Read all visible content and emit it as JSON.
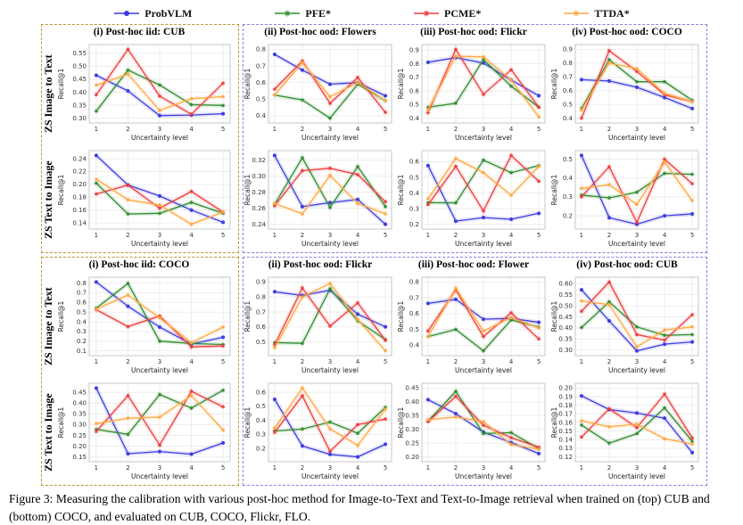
{
  "caption": "Figure 3: Measuring the calibration with various post-hoc method for Image-to-Text and Text-to-Image retrieval when trained on (top) CUB and (bottom) COCO, and evaluated on CUB, COCO, Flickr, FLO.",
  "legend": {
    "items": [
      {
        "label": "ProbVLM",
        "color": "#3d3de0",
        "marker": "circle"
      },
      {
        "label": "PFE*",
        "color": "#2f8b2f",
        "marker": "star"
      },
      {
        "label": "PCME*",
        "color": "#ef3b3b",
        "marker": "star"
      },
      {
        "label": "TTDA*",
        "color": "#ffa842",
        "marker": "star"
      }
    ]
  },
  "chart_data": {
    "type": "line",
    "x_values": [
      1,
      2,
      3,
      4,
      5
    ],
    "xlabel": "Uncertainty level",
    "ylabel": "Recall@1",
    "grid": true,
    "series_order": [
      "ProbVLM",
      "PFE*",
      "PCME*",
      "TTDA*"
    ],
    "series_colors": {
      "ProbVLM": "#3d3de0",
      "PFE*": "#2f8b2f",
      "PCME*": "#ef3b3b",
      "TTDA*": "#ffa842"
    },
    "sections": [
      {
        "position": "top",
        "trained_on": "CUB",
        "row_labels": [
          "ZS Image to Text",
          "ZS Text to Image"
        ],
        "columns": [
          {
            "title": "(i) Post-hoc iid: CUB",
            "charts": [
              {
                "row": "ZS Image to Text",
                "yticks": [
                  0.3,
                  0.35,
                  0.4,
                  0.45,
                  0.5,
                  0.55
                ],
                "ydec": 2,
                "series": {
                  "ProbVLM": [
                    0.465,
                    0.405,
                    0.31,
                    0.312,
                    0.317
                  ],
                  "PFE*": [
                    0.327,
                    0.485,
                    0.428,
                    0.352,
                    0.349
                  ],
                  "PCME*": [
                    0.39,
                    0.565,
                    0.385,
                    0.315,
                    0.435
                  ],
                  "TTDA*": [
                    0.427,
                    0.47,
                    0.33,
                    0.375,
                    0.383
                  ]
                }
              },
              {
                "row": "ZS Text to Image",
                "yticks": [
                  0.14,
                  0.16,
                  0.18,
                  0.2,
                  0.22,
                  0.24
                ],
                "ydec": 2,
                "series": {
                  "ProbVLM": [
                    0.245,
                    0.199,
                    0.182,
                    0.16,
                    0.141
                  ],
                  "PFE*": [
                    0.202,
                    0.154,
                    0.155,
                    0.172,
                    0.155
                  ],
                  "PCME*": [
                    0.185,
                    0.199,
                    0.163,
                    0.189,
                    0.157
                  ],
                  "TTDA*": [
                    0.208,
                    0.176,
                    0.168,
                    0.138,
                    0.157
                  ]
                }
              }
            ]
          },
          {
            "title": "(ii) Post-hoc ood: Flowers",
            "charts": [
              {
                "row": "ZS Image to Text",
                "yticks": [
                  0.4,
                  0.5,
                  0.6,
                  0.7,
                  0.8
                ],
                "ydec": 1,
                "series": {
                  "ProbVLM": [
                    0.77,
                    0.675,
                    0.59,
                    0.6,
                    0.52
                  ],
                  "PFE*": [
                    0.525,
                    0.495,
                    0.385,
                    0.59,
                    0.49
                  ],
                  "PCME*": [
                    0.56,
                    0.73,
                    0.475,
                    0.63,
                    0.42
                  ],
                  "TTDA*": [
                    0.525,
                    0.72,
                    0.515,
                    0.6,
                    0.49
                  ]
                }
              },
              {
                "row": "ZS Text to Image",
                "yticks": [
                  0.24,
                  0.26,
                  0.28,
                  0.3,
                  0.32
                ],
                "ydec": 2,
                "series": {
                  "ProbVLM": [
                    0.326,
                    0.262,
                    0.267,
                    0.271,
                    0.24
                  ],
                  "PFE*": [
                    0.265,
                    0.323,
                    0.261,
                    0.312,
                    0.262
                  ],
                  "PCME*": [
                    0.263,
                    0.307,
                    0.31,
                    0.302,
                    0.268
                  ],
                  "TTDA*": [
                    0.266,
                    0.253,
                    0.301,
                    0.266,
                    0.253
                  ]
                }
              }
            ]
          },
          {
            "title": "(iii) Post-hoc ood: Flickr",
            "charts": [
              {
                "row": "ZS Image to Text",
                "yticks": [
                  0.4,
                  0.5,
                  0.6,
                  0.7,
                  0.8,
                  0.9
                ],
                "ydec": 1,
                "series": {
                  "ProbVLM": [
                    0.81,
                    0.845,
                    0.805,
                    0.68,
                    0.565
                  ],
                  "PFE*": [
                    0.48,
                    0.51,
                    0.83,
                    0.635,
                    0.48
                  ],
                  "PCME*": [
                    0.44,
                    0.905,
                    0.575,
                    0.755,
                    0.48
                  ],
                  "TTDA*": [
                    0.46,
                    0.855,
                    0.85,
                    0.68,
                    0.41
                  ]
                }
              },
              {
                "row": "ZS Text to Image",
                "yticks": [
                  0.2,
                  0.3,
                  0.4,
                  0.5,
                  0.6
                ],
                "ydec": 1,
                "series": {
                  "ProbVLM": [
                    0.575,
                    0.22,
                    0.243,
                    0.232,
                    0.27
                  ],
                  "PFE*": [
                    0.338,
                    0.337,
                    0.61,
                    0.53,
                    0.575
                  ],
                  "PCME*": [
                    0.325,
                    0.57,
                    0.285,
                    0.64,
                    0.475
                  ],
                  "TTDA*": [
                    0.363,
                    0.62,
                    0.53,
                    0.385,
                    0.57
                  ]
                }
              }
            ]
          },
          {
            "title": "(iv) Post-hoc ood: COCO",
            "charts": [
              {
                "row": "ZS Image to Text",
                "yticks": [
                  0.4,
                  0.5,
                  0.6,
                  0.7,
                  0.8,
                  0.9
                ],
                "ydec": 1,
                "series": {
                  "ProbVLM": [
                    0.68,
                    0.67,
                    0.625,
                    0.55,
                    0.47
                  ],
                  "PFE*": [
                    0.47,
                    0.825,
                    0.665,
                    0.665,
                    0.53
                  ],
                  "PCME*": [
                    0.4,
                    0.89,
                    0.74,
                    0.57,
                    0.52
                  ],
                  "TTDA*": [
                    0.46,
                    0.8,
                    0.76,
                    0.58,
                    0.52
                  ]
                }
              },
              {
                "row": "ZS Text to Image",
                "yticks": [
                  0.2,
                  0.3,
                  0.4,
                  0.5
                ],
                "ydec": 1,
                "series": {
                  "ProbVLM": [
                    0.52,
                    0.19,
                    0.155,
                    0.2,
                    0.21
                  ],
                  "PFE*": [
                    0.31,
                    0.295,
                    0.325,
                    0.425,
                    0.42
                  ],
                  "PCME*": [
                    0.3,
                    0.46,
                    0.165,
                    0.5,
                    0.37
                  ],
                  "TTDA*": [
                    0.345,
                    0.365,
                    0.26,
                    0.485,
                    0.28
                  ]
                }
              }
            ]
          }
        ]
      },
      {
        "position": "bottom",
        "trained_on": "COCO",
        "row_labels": [
          "ZS Image to Text",
          "ZS Text to Image"
        ],
        "columns": [
          {
            "title": "(i) Post-hoc iid: COCO",
            "charts": [
              {
                "row": "ZS Image to Text",
                "yticks": [
                  0.1,
                  0.2,
                  0.3,
                  0.4,
                  0.5,
                  0.6,
                  0.7,
                  0.8
                ],
                "ydec": 1,
                "series": {
                  "ProbVLM": [
                    0.81,
                    0.56,
                    0.345,
                    0.17,
                    0.24
                  ],
                  "PFE*": [
                    0.54,
                    0.795,
                    0.2,
                    0.175,
                    0.165
                  ],
                  "PCME*": [
                    0.525,
                    0.35,
                    0.46,
                    0.14,
                    0.15
                  ],
                  "TTDA*": [
                    0.53,
                    0.675,
                    0.44,
                    0.185,
                    0.345
                  ]
                }
              },
              {
                "row": "ZS Text to Image",
                "yticks": [
                  0.15,
                  0.2,
                  0.25,
                  0.3,
                  0.35,
                  0.4,
                  0.45
                ],
                "ydec": 2,
                "series": {
                  "ProbVLM": [
                    0.47,
                    0.165,
                    0.175,
                    0.163,
                    0.215
                  ],
                  "PFE*": [
                    0.278,
                    0.255,
                    0.44,
                    0.377,
                    0.46
                  ],
                  "PCME*": [
                    0.268,
                    0.435,
                    0.205,
                    0.455,
                    0.383
                  ],
                  "TTDA*": [
                    0.305,
                    0.33,
                    0.335,
                    0.435,
                    0.275
                  ]
                }
              }
            ]
          },
          {
            "title": "(ii) Post-hoc ood: Flickr",
            "charts": [
              {
                "row": "ZS Image to Text",
                "yticks": [
                  0.5,
                  0.6,
                  0.7,
                  0.8,
                  0.9
                ],
                "ydec": 1,
                "series": {
                  "ProbVLM": [
                    0.835,
                    0.81,
                    0.845,
                    0.685,
                    0.6
                  ],
                  "PFE*": [
                    0.495,
                    0.49,
                    0.855,
                    0.64,
                    0.515
                  ],
                  "PCME*": [
                    0.48,
                    0.86,
                    0.605,
                    0.76,
                    0.51
                  ],
                  "TTDA*": [
                    0.46,
                    0.8,
                    0.89,
                    0.65,
                    0.44
                  ]
                }
              },
              {
                "row": "ZS Text to Image",
                "yticks": [
                  0.2,
                  0.3,
                  0.4,
                  0.5,
                  0.6
                ],
                "ydec": 1,
                "series": {
                  "ProbVLM": [
                    0.55,
                    0.218,
                    0.158,
                    0.14,
                    0.23
                  ],
                  "PFE*": [
                    0.325,
                    0.338,
                    0.388,
                    0.308,
                    0.493
                  ],
                  "PCME*": [
                    0.315,
                    0.575,
                    0.18,
                    0.37,
                    0.41
                  ],
                  "TTDA*": [
                    0.345,
                    0.63,
                    0.34,
                    0.222,
                    0.48
                  ]
                }
              }
            ]
          },
          {
            "title": "(iii) Post-hoc ood: Flower",
            "charts": [
              {
                "row": "ZS Image to Text",
                "yticks": [
                  0.4,
                  0.5,
                  0.6,
                  0.7,
                  0.8
                ],
                "ydec": 1,
                "series": {
                  "ProbVLM": [
                    0.665,
                    0.69,
                    0.565,
                    0.57,
                    0.545
                  ],
                  "PFE*": [
                    0.455,
                    0.5,
                    0.365,
                    0.56,
                    0.515
                  ],
                  "PCME*": [
                    0.49,
                    0.75,
                    0.455,
                    0.605,
                    0.44
                  ],
                  "TTDA*": [
                    0.455,
                    0.76,
                    0.49,
                    0.575,
                    0.51
                  ]
                }
              },
              {
                "row": "ZS Text to Image",
                "yticks": [
                  0.2,
                  0.25,
                  0.3,
                  0.35,
                  0.4,
                  0.45
                ],
                "ydec": 2,
                "series": {
                  "ProbVLM": [
                    0.408,
                    0.357,
                    0.29,
                    0.252,
                    0.212
                  ],
                  "PFE*": [
                    0.33,
                    0.438,
                    0.285,
                    0.288,
                    0.23
                  ],
                  "PCME*": [
                    0.328,
                    0.42,
                    0.315,
                    0.27,
                    0.235
                  ],
                  "TTDA*": [
                    0.335,
                    0.345,
                    0.328,
                    0.245,
                    0.228
                  ]
                }
              }
            ]
          },
          {
            "title": "(iv) Post-hoc ood: CUB",
            "charts": [
              {
                "row": "ZS Image to Text",
                "yticks": [
                  0.3,
                  0.35,
                  0.4,
                  0.45,
                  0.5,
                  0.55,
                  0.6
                ],
                "ydec": 2,
                "series": {
                  "ProbVLM": [
                    0.572,
                    0.432,
                    0.297,
                    0.327,
                    0.337
                  ],
                  "PFE*": [
                    0.402,
                    0.518,
                    0.405,
                    0.367,
                    0.37
                  ],
                  "PCME*": [
                    0.475,
                    0.607,
                    0.37,
                    0.345,
                    0.46
                  ],
                  "TTDA*": [
                    0.522,
                    0.505,
                    0.315,
                    0.39,
                    0.405
                  ]
                }
              },
              {
                "row": "ZS Text to Image",
                "yticks": [
                  0.12,
                  0.13,
                  0.14,
                  0.15,
                  0.16,
                  0.17,
                  0.18,
                  0.19,
                  0.2
                ],
                "ydec": 2,
                "series": {
                  "ProbVLM": [
                    0.191,
                    0.175,
                    0.171,
                    0.165,
                    0.125
                  ],
                  "PFE*": [
                    0.157,
                    0.136,
                    0.147,
                    0.177,
                    0.138
                  ],
                  "PCME*": [
                    0.143,
                    0.176,
                    0.154,
                    0.193,
                    0.142
                  ],
                  "TTDA*": [
                    0.162,
                    0.155,
                    0.158,
                    0.141,
                    0.135
                  ]
                }
              }
            ]
          }
        ]
      }
    ]
  }
}
